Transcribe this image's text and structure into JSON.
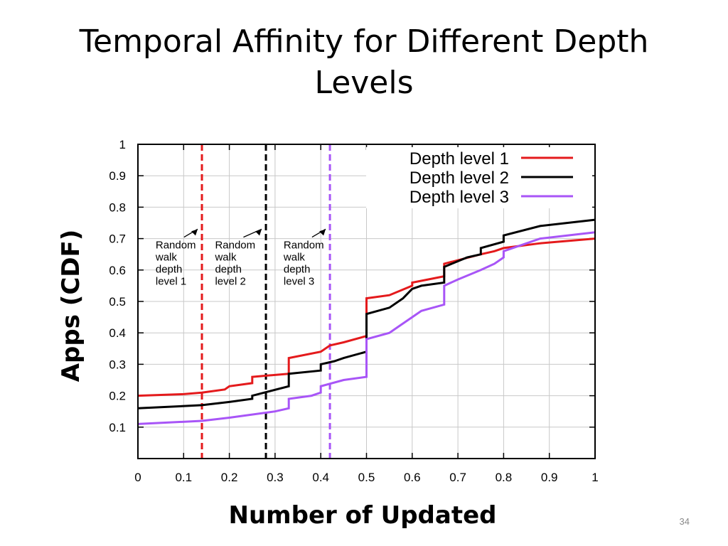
{
  "slide": {
    "title_line1": "Temporal Affinity for Different Depth",
    "title_line2": "Levels",
    "page_number": "34"
  },
  "chart_data": {
    "type": "line",
    "xlabel": "Number of Updated",
    "ylabel": "Apps (CDF)",
    "xlim": [
      0,
      1
    ],
    "ylim": [
      0,
      1
    ],
    "x_ticks": [
      "0",
      "0.1",
      "0.2",
      "0.3",
      "0.4",
      "0.5",
      "0.6",
      "0.7",
      "0.8",
      "0.9",
      "1"
    ],
    "y_ticks": [
      "0.1",
      "0.2",
      "0.3",
      "0.4",
      "0.5",
      "0.6",
      "0.7",
      "0.8",
      "0.9",
      "1"
    ],
    "grid": true,
    "legend_position": "top-right",
    "series": [
      {
        "name": "Depth level 1",
        "color": "#e41a1c",
        "x": [
          0,
          0.1,
          0.14,
          0.19,
          0.2,
          0.25,
          0.25,
          0.33,
          0.33,
          0.4,
          0.42,
          0.45,
          0.5,
          0.5,
          0.55,
          0.6,
          0.6,
          0.67,
          0.67,
          0.75,
          0.78,
          0.8,
          0.88,
          1
        ],
        "y": [
          0.2,
          0.205,
          0.21,
          0.22,
          0.23,
          0.24,
          0.26,
          0.27,
          0.32,
          0.34,
          0.36,
          0.37,
          0.39,
          0.51,
          0.52,
          0.55,
          0.56,
          0.58,
          0.62,
          0.65,
          0.66,
          0.67,
          0.685,
          0.7
        ]
      },
      {
        "name": "Depth level 2",
        "color": "#000000",
        "x": [
          0,
          0.14,
          0.2,
          0.25,
          0.25,
          0.33,
          0.33,
          0.4,
          0.4,
          0.43,
          0.45,
          0.5,
          0.5,
          0.55,
          0.58,
          0.6,
          0.62,
          0.67,
          0.67,
          0.72,
          0.75,
          0.75,
          0.8,
          0.8,
          0.88,
          1
        ],
        "y": [
          0.16,
          0.17,
          0.18,
          0.19,
          0.2,
          0.23,
          0.27,
          0.28,
          0.3,
          0.31,
          0.32,
          0.34,
          0.46,
          0.48,
          0.51,
          0.54,
          0.55,
          0.56,
          0.61,
          0.64,
          0.65,
          0.67,
          0.69,
          0.71,
          0.74,
          0.76
        ]
      },
      {
        "name": "Depth level 3",
        "color": "#a855f7",
        "x": [
          0,
          0.14,
          0.2,
          0.3,
          0.33,
          0.33,
          0.38,
          0.4,
          0.4,
          0.45,
          0.5,
          0.5,
          0.55,
          0.57,
          0.6,
          0.62,
          0.67,
          0.67,
          0.7,
          0.75,
          0.78,
          0.8,
          0.8,
          0.88,
          1
        ],
        "y": [
          0.11,
          0.12,
          0.13,
          0.15,
          0.16,
          0.19,
          0.2,
          0.21,
          0.23,
          0.25,
          0.26,
          0.38,
          0.4,
          0.42,
          0.45,
          0.47,
          0.49,
          0.55,
          0.57,
          0.6,
          0.62,
          0.64,
          0.66,
          0.7,
          0.72
        ]
      }
    ],
    "vertical_lines": [
      {
        "x": 0.14,
        "color": "#e41a1c",
        "label": "Random walk depth level 1",
        "lines": [
          "Random",
          "walk",
          "depth",
          "level 1"
        ],
        "label_at": [
          0.02,
          0.7
        ]
      },
      {
        "x": 0.28,
        "color": "#000000",
        "label": "Random walk depth level 2",
        "lines": [
          "Random",
          "walk",
          "depth",
          "level 2"
        ],
        "label_at": [
          0.15,
          0.7
        ]
      },
      {
        "x": 0.42,
        "color": "#a855f7",
        "label": "Random walk depth level 3",
        "lines": [
          "Random",
          "walk",
          "depth",
          "level 3"
        ],
        "label_at": [
          0.3,
          0.7
        ]
      }
    ]
  }
}
